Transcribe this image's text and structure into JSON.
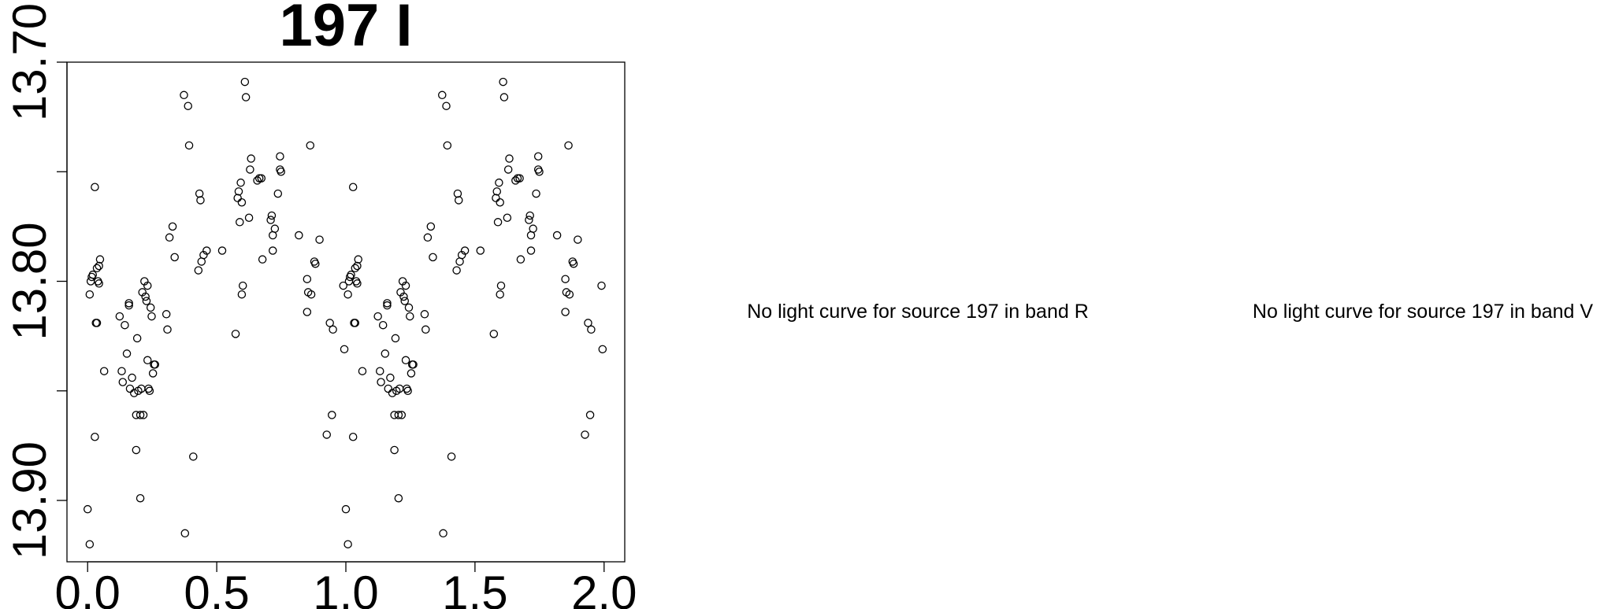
{
  "chart_data": {
    "type": "scatter",
    "title": "197 I",
    "annotations": [
      "No light curve for source 197 in band R",
      "No light curve for source 197 in band V"
    ],
    "xlim": [
      -0.08,
      2.08
    ],
    "ylim": [
      13.7,
      13.928
    ],
    "invert_y": true,
    "xticks": [
      {
        "value": 0,
        "label": "0.0"
      },
      0.5,
      {
        "value": 1,
        "label": "1.0"
      },
      1.5,
      {
        "value": 2,
        "label": "2.0"
      }
    ],
    "yticks": [
      {
        "value": 13.7,
        "label": "13.70"
      },
      {
        "value": 13.75,
        "label": null
      },
      {
        "value": 13.8,
        "label": "13.80"
      },
      {
        "value": 13.85,
        "label": null
      },
      {
        "value": 13.9,
        "label": "13.90"
      }
    ],
    "series": [
      {
        "color": "#000000",
        "x": [
          0.0,
          0.008,
          0.008,
          0.012,
          0.016,
          0.02,
          0.028,
          0.028,
          0.032,
          0.036,
          0.036,
          0.04,
          0.044,
          0.044,
          0.048,
          0.064,
          0.124,
          0.132,
          0.136,
          0.144,
          0.152,
          0.16,
          0.16,
          0.164,
          0.172,
          0.18,
          0.188,
          0.188,
          0.192,
          0.196,
          0.204,
          0.204,
          0.208,
          0.212,
          0.216,
          0.22,
          0.224,
          0.228,
          0.232,
          0.232,
          0.236,
          0.24,
          0.244,
          0.248,
          0.253,
          0.257,
          0.261,
          0.305,
          0.309,
          0.317,
          0.329,
          0.337,
          0.373,
          0.389,
          0.393,
          0.377,
          0.409,
          0.429,
          0.433,
          0.437,
          0.441,
          0.449,
          0.461,
          0.521,
          0.573,
          0.581,
          0.585,
          0.589,
          0.593,
          0.597,
          0.597,
          0.601,
          0.609,
          0.613,
          0.625,
          0.629,
          0.633,
          0.657,
          0.665,
          0.673,
          0.677,
          0.709,
          0.713,
          0.717,
          0.717,
          0.725,
          0.737,
          0.745,
          0.745,
          0.749,
          0.818,
          0.85,
          0.85,
          0.854,
          0.862,
          0.866,
          0.878,
          0.882,
          0.898,
          0.926,
          0.938,
          0.946,
          0.95,
          0.99,
          0.994,
          1.0,
          1.008,
          1.008,
          1.012,
          1.016,
          1.02,
          1.028,
          1.028,
          1.032,
          1.036,
          1.036,
          1.04,
          1.044,
          1.044,
          1.048,
          1.064,
          1.124,
          1.132,
          1.136,
          1.144,
          1.152,
          1.16,
          1.16,
          1.164,
          1.172,
          1.18,
          1.188,
          1.188,
          1.192,
          1.196,
          1.204,
          1.204,
          1.208,
          1.212,
          1.216,
          1.22,
          1.224,
          1.228,
          1.232,
          1.232,
          1.236,
          1.24,
          1.244,
          1.248,
          1.253,
          1.257,
          1.261,
          1.305,
          1.309,
          1.317,
          1.329,
          1.337,
          1.373,
          1.389,
          1.393,
          1.377,
          1.409,
          1.429,
          1.433,
          1.437,
          1.441,
          1.449,
          1.461,
          1.521,
          1.573,
          1.581,
          1.585,
          1.589,
          1.593,
          1.597,
          1.597,
          1.601,
          1.609,
          1.613,
          1.625,
          1.629,
          1.633,
          1.657,
          1.665,
          1.673,
          1.677,
          1.709,
          1.713,
          1.717,
          1.717,
          1.725,
          1.737,
          1.745,
          1.745,
          1.749,
          1.818,
          1.85,
          1.85,
          1.854,
          1.862,
          1.866,
          1.878,
          1.882,
          1.898,
          1.926,
          1.938,
          1.946,
          1.95,
          1.99,
          1.994
        ],
        "values": [
          13.904,
          13.92,
          13.806,
          13.8,
          13.798,
          13.797,
          13.757,
          13.871,
          13.819,
          13.819,
          13.794,
          13.8,
          13.801,
          13.793,
          13.79,
          13.841,
          13.816,
          13.841,
          13.846,
          13.82,
          13.833,
          13.811,
          13.81,
          13.849,
          13.844,
          13.851,
          13.861,
          13.877,
          13.826,
          13.85,
          13.861,
          13.899,
          13.849,
          13.805,
          13.861,
          13.8,
          13.807,
          13.809,
          13.802,
          13.836,
          13.849,
          13.85,
          13.812,
          13.816,
          13.842,
          13.838,
          13.838,
          13.815,
          13.822,
          13.78,
          13.775,
          13.789,
          13.715,
          13.72,
          13.738,
          13.915,
          13.88,
          13.795,
          13.76,
          13.763,
          13.791,
          13.788,
          13.786,
          13.786,
          13.824,
          13.762,
          13.759,
          13.773,
          13.755,
          13.764,
          13.806,
          13.802,
          13.709,
          13.716,
          13.771,
          13.749,
          13.744,
          13.754,
          13.753,
          13.753,
          13.79,
          13.772,
          13.77,
          13.779,
          13.786,
          13.776,
          13.76,
          13.749,
          13.743,
          13.75,
          13.779,
          13.814,
          13.799,
          13.805,
          13.738,
          13.806,
          13.791,
          13.792,
          13.781,
          13.87,
          13.819,
          13.861,
          13.822,
          13.802,
          13.831,
          13.904,
          13.92,
          13.806,
          13.8,
          13.798,
          13.797,
          13.757,
          13.871,
          13.819,
          13.819,
          13.794,
          13.8,
          13.801,
          13.793,
          13.79,
          13.841,
          13.816,
          13.841,
          13.846,
          13.82,
          13.833,
          13.811,
          13.81,
          13.849,
          13.844,
          13.851,
          13.861,
          13.877,
          13.826,
          13.85,
          13.861,
          13.899,
          13.849,
          13.805,
          13.861,
          13.8,
          13.807,
          13.809,
          13.802,
          13.836,
          13.849,
          13.85,
          13.812,
          13.816,
          13.842,
          13.838,
          13.838,
          13.815,
          13.822,
          13.78,
          13.775,
          13.789,
          13.715,
          13.72,
          13.738,
          13.915,
          13.88,
          13.795,
          13.76,
          13.763,
          13.791,
          13.788,
          13.786,
          13.786,
          13.824,
          13.762,
          13.759,
          13.773,
          13.755,
          13.764,
          13.806,
          13.802,
          13.709,
          13.716,
          13.771,
          13.749,
          13.744,
          13.754,
          13.753,
          13.753,
          13.79,
          13.772,
          13.77,
          13.779,
          13.786,
          13.776,
          13.76,
          13.749,
          13.743,
          13.75,
          13.779,
          13.814,
          13.799,
          13.805,
          13.738,
          13.806,
          13.791,
          13.792,
          13.781,
          13.87,
          13.819,
          13.861,
          13.822,
          13.802,
          13.831
        ]
      }
    ]
  }
}
